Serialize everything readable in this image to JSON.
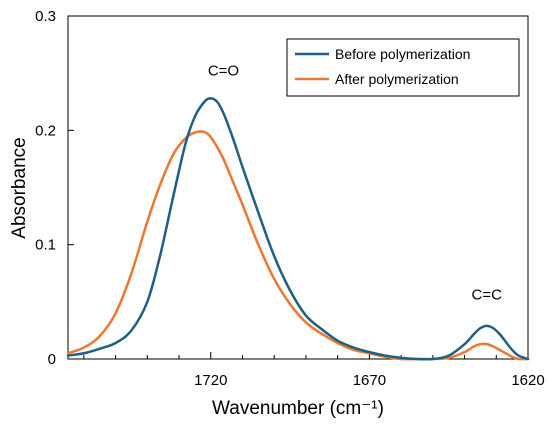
{
  "chart_data": {
    "type": "line",
    "xlabel": "Wavenumber (cm⁻¹)",
    "ylabel": "Absorbance",
    "xlim": [
      1765,
      1620
    ],
    "ylim": [
      0,
      0.3
    ],
    "x_reversed": true,
    "x_ticks": [
      1720,
      1670,
      1620
    ],
    "x_minor_ticks": [
      1760,
      1750,
      1740,
      1730,
      1710,
      1700,
      1690,
      1680,
      1660,
      1650,
      1640,
      1630
    ],
    "y_ticks": [
      0,
      0.1,
      0.2,
      0.3
    ],
    "y_tick_labels": [
      "0",
      "0.1",
      "0.2",
      "0.3"
    ],
    "grid": false,
    "legend_position": "top-right",
    "annotations": [
      {
        "text": "C=O",
        "x": 1716,
        "y": 0.248
      },
      {
        "text": "C=C",
        "x": 1633,
        "y": 0.052
      }
    ],
    "series": [
      {
        "name": "Before polymerization",
        "color": "#1f5f86",
        "x": [
          1765,
          1760,
          1755,
          1750,
          1745,
          1740,
          1736,
          1732,
          1728,
          1725,
          1722,
          1720,
          1718,
          1716,
          1713,
          1710,
          1705,
          1700,
          1695,
          1690,
          1685,
          1680,
          1675,
          1670,
          1665,
          1660,
          1655,
          1650,
          1645,
          1640,
          1637,
          1635,
          1633,
          1631,
          1629,
          1627,
          1625,
          1623,
          1620
        ],
        "y": [
          0.003,
          0.005,
          0.009,
          0.014,
          0.025,
          0.05,
          0.09,
          0.14,
          0.188,
          0.212,
          0.225,
          0.228,
          0.225,
          0.215,
          0.193,
          0.168,
          0.128,
          0.09,
          0.06,
          0.038,
          0.026,
          0.016,
          0.01,
          0.006,
          0.003,
          0.001,
          0.0,
          0.0,
          0.003,
          0.013,
          0.022,
          0.027,
          0.029,
          0.027,
          0.022,
          0.015,
          0.008,
          0.003,
          0.0
        ]
      },
      {
        "name": "After polymerization",
        "color": "#ec7830",
        "x": [
          1765,
          1760,
          1755,
          1750,
          1745,
          1740,
          1736,
          1732,
          1729,
          1726,
          1723,
          1721,
          1719,
          1716,
          1713,
          1710,
          1705,
          1700,
          1695,
          1690,
          1685,
          1680,
          1675,
          1670,
          1665,
          1660,
          1655,
          1650,
          1645,
          1640,
          1637,
          1635,
          1633,
          1631,
          1629,
          1627,
          1625,
          1623,
          1620
        ],
        "y": [
          0.005,
          0.01,
          0.02,
          0.04,
          0.075,
          0.12,
          0.152,
          0.178,
          0.19,
          0.197,
          0.199,
          0.197,
          0.19,
          0.175,
          0.155,
          0.135,
          0.1,
          0.07,
          0.048,
          0.032,
          0.022,
          0.014,
          0.008,
          0.005,
          0.002,
          0.0,
          0.0,
          0.0,
          0.001,
          0.006,
          0.011,
          0.013,
          0.013,
          0.011,
          0.008,
          0.005,
          0.002,
          0.0,
          0.0
        ]
      }
    ]
  }
}
